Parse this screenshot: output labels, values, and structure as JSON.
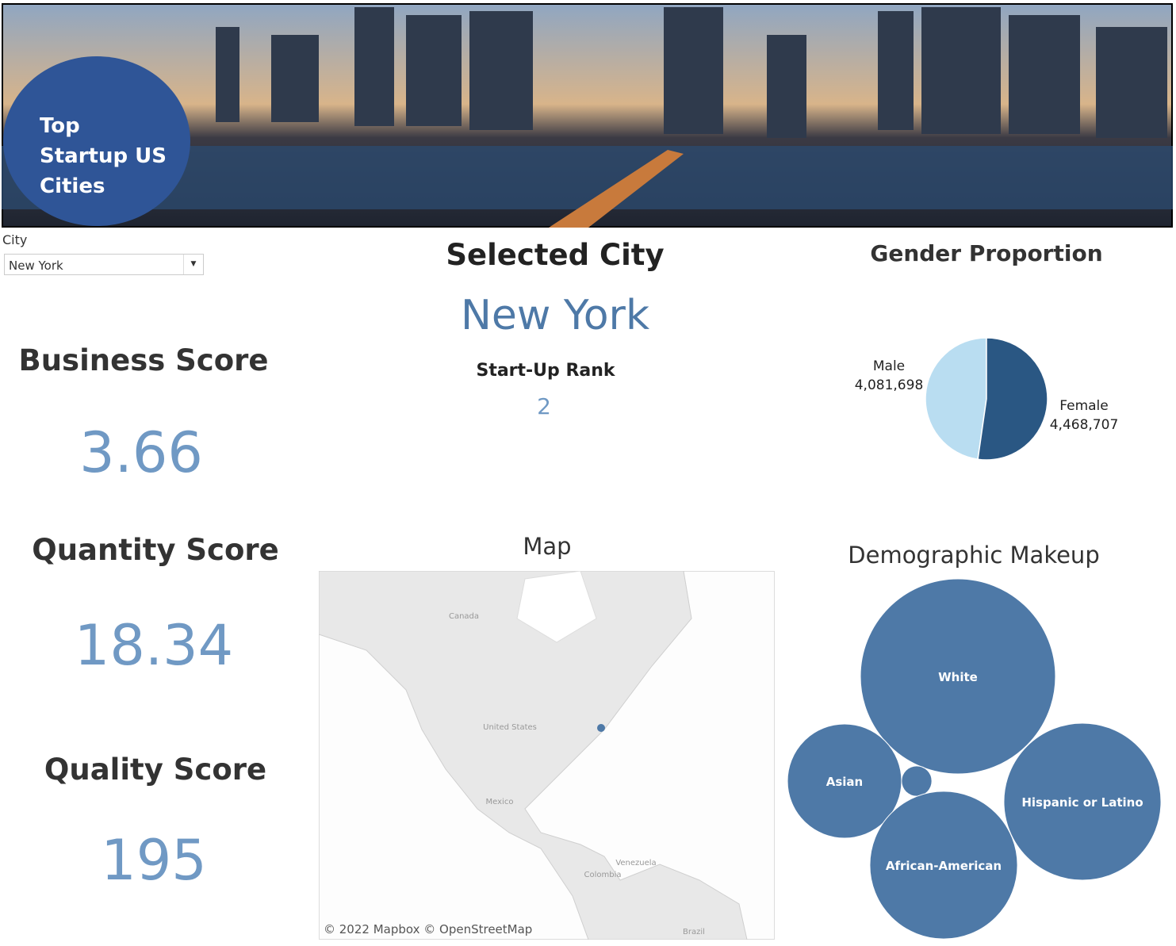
{
  "header": {
    "title": "Top Startup US Cities"
  },
  "filter": {
    "label": "City",
    "value": "New York"
  },
  "scores": [
    {
      "label": "Business Score",
      "value": 3.66
    },
    {
      "label": "Quantity Score",
      "value": 18.34
    },
    {
      "label": "Quality Score",
      "value": 195
    }
  ],
  "selected_city": {
    "title": "Selected City",
    "city": "New York",
    "rank_label": "Start-Up Rank",
    "rank": 2
  },
  "map": {
    "title": "Map",
    "labels": [
      "Canada",
      "United States",
      "Mexico",
      "Venezuela",
      "Colombia",
      "Brazil"
    ],
    "attribution": "© 2022 Mapbox © OpenStreetMap"
  },
  "chart_data": [
    {
      "type": "pie",
      "title": "Gender Proportion",
      "categories": [
        "Male",
        "Female"
      ],
      "values": [
        4081698,
        4468707
      ],
      "value_labels": [
        "4,081,698",
        "4,468,707"
      ],
      "colors": [
        "#b9ddf1",
        "#2a5783"
      ]
    },
    {
      "type": "bubble",
      "title": "Demographic Makeup",
      "categories": [
        "White",
        "Asian",
        null,
        "African-American",
        "Hispanic or Latino"
      ],
      "values": [
        3300000,
        1130000,
        80000,
        1890000,
        2140000
      ],
      "color": "#4e79a7"
    }
  ]
}
